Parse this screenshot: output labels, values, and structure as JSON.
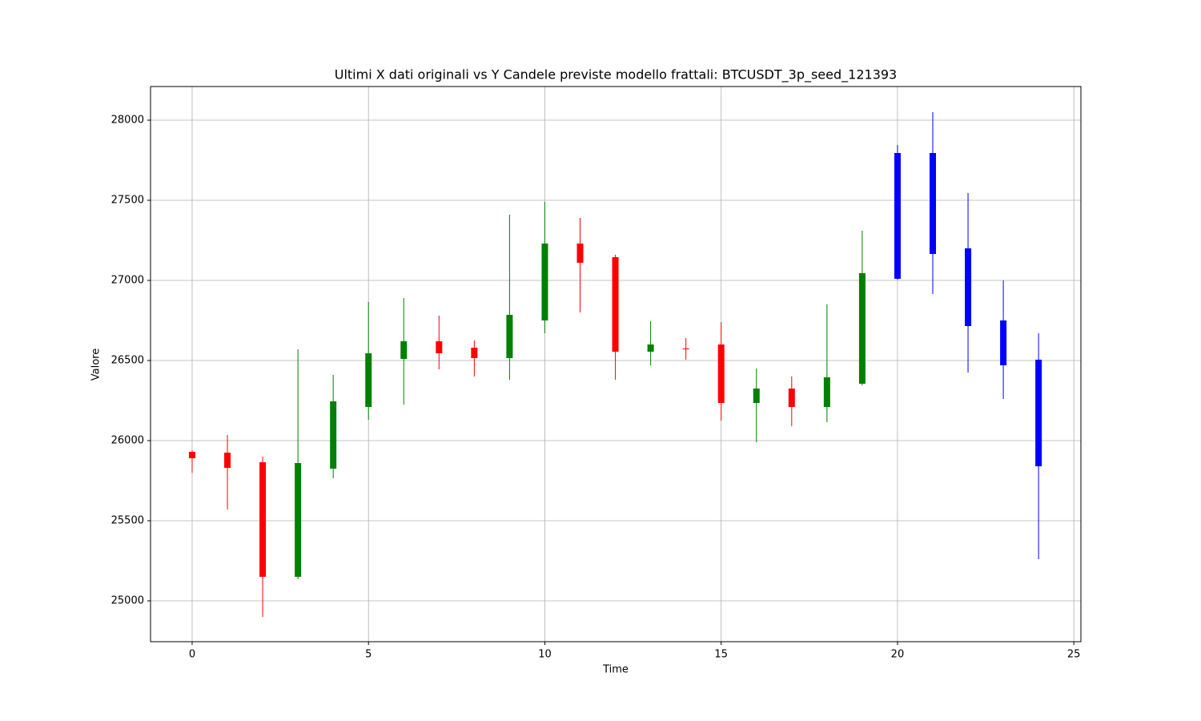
{
  "chart_data": {
    "type": "candlestick",
    "title": "Ultimi X dati originali vs Y Candele previste modello frattali: BTCUSDT_3p_seed_121393",
    "x_label": "Time",
    "y_label": "Valore",
    "x": [
      0,
      1,
      2,
      3,
      4,
      5,
      6,
      7,
      8,
      9,
      10,
      11,
      12,
      13,
      14,
      15,
      16,
      17,
      18,
      19,
      20,
      21,
      22,
      23,
      24
    ],
    "open": [
      25930,
      25925,
      25865,
      25150,
      25825,
      26210,
      26510,
      26620,
      26580,
      26515,
      26750,
      27230,
      27145,
      26555,
      26575,
      26600,
      26235,
      26325,
      26210,
      26355,
      27010,
      27795,
      27200,
      26750,
      26505
    ],
    "high": [
      25940,
      26035,
      25900,
      26570,
      26410,
      26865,
      26890,
      26780,
      26625,
      27410,
      27490,
      27390,
      27160,
      26745,
      26640,
      26740,
      26450,
      26400,
      26850,
      27310,
      27845,
      28050,
      27545,
      27000,
      26670
    ],
    "low": [
      25800,
      25570,
      24900,
      25135,
      25765,
      26130,
      26225,
      26445,
      26400,
      26380,
      26670,
      26800,
      26380,
      26470,
      26505,
      26125,
      25990,
      26090,
      26115,
      26345,
      27005,
      26915,
      26425,
      26260,
      25260
    ],
    "close": [
      25890,
      25830,
      25150,
      25860,
      26245,
      26545,
      26620,
      26545,
      26515,
      26785,
      27230,
      27110,
      26555,
      26600,
      26570,
      26235,
      26325,
      26210,
      26395,
      27045,
      27795,
      27165,
      26715,
      26470,
      25840
    ],
    "colors": [
      "red",
      "red",
      "red",
      "green",
      "green",
      "green",
      "green",
      "red",
      "red",
      "green",
      "green",
      "red",
      "red",
      "green",
      "red",
      "red",
      "green",
      "red",
      "green",
      "green",
      "blue",
      "blue",
      "blue",
      "blue",
      "blue"
    ],
    "xlim": [
      -1.18,
      25.2
    ],
    "ylim": [
      24745,
      28210
    ],
    "xticks": [
      0,
      5,
      10,
      15,
      20,
      25
    ],
    "yticks": [
      25000,
      25500,
      26000,
      26500,
      27000,
      27500,
      28000
    ],
    "grid": true
  }
}
